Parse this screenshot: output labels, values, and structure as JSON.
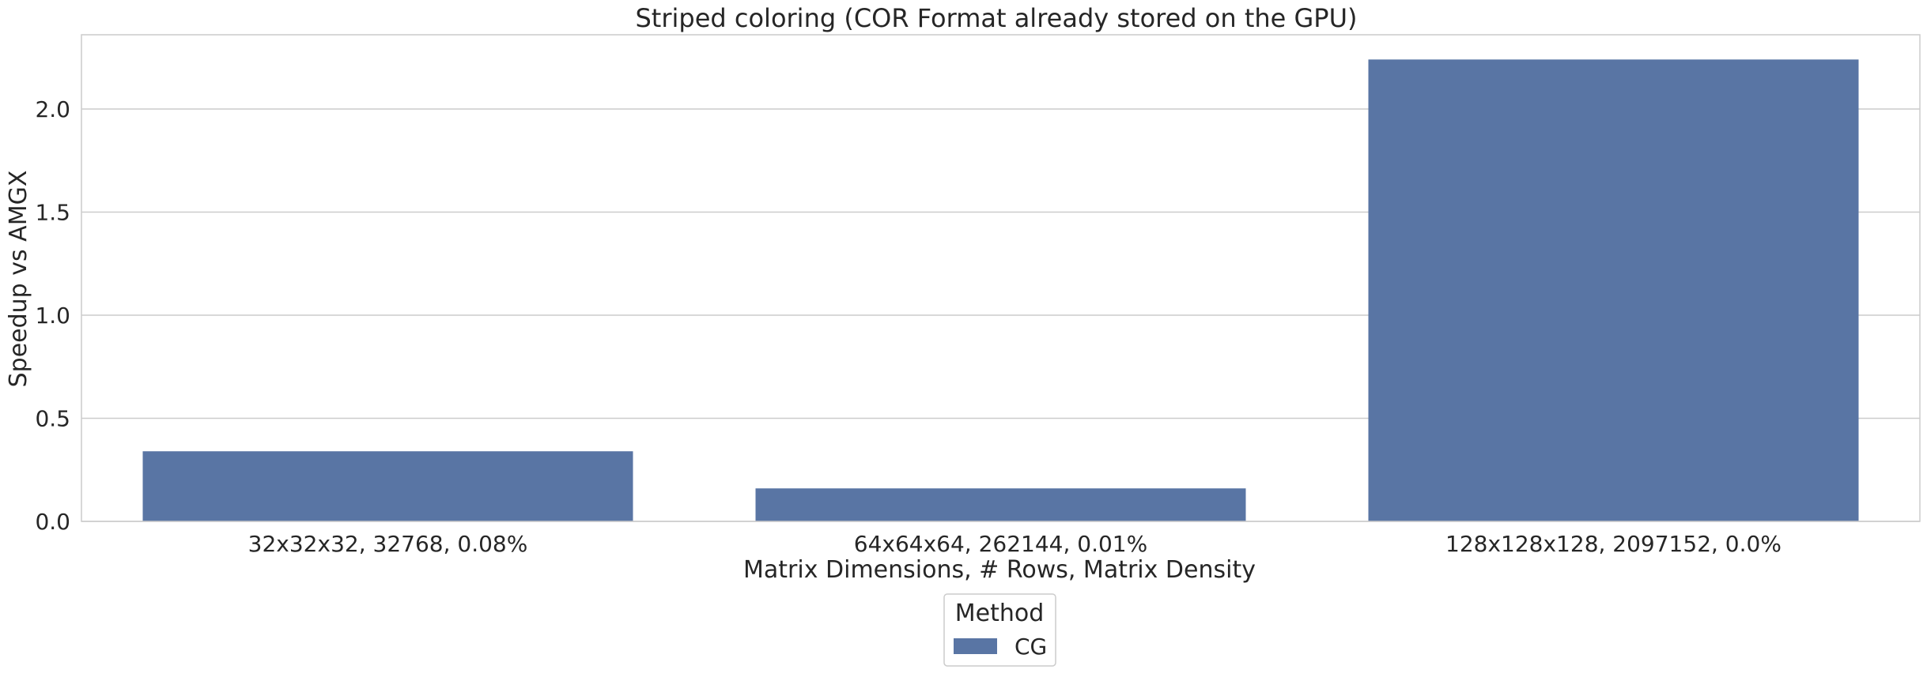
{
  "chart_data": {
    "type": "bar",
    "title": "Striped coloring (COR Format already stored on the GPU)",
    "xlabel": "Matrix Dimensions, # Rows, Matrix Density",
    "ylabel": "Speedup vs AMGX",
    "categories": [
      "32x32x32, 32768, 0.08%",
      "64x64x64, 262144, 0.01%",
      "128x128x128, 2097152, 0.0%"
    ],
    "series": [
      {
        "name": "CG",
        "color": "#5975a4",
        "values": [
          0.34,
          0.16,
          2.24
        ]
      }
    ],
    "ylim": [
      0,
      2.36
    ],
    "yticks": [
      0.0,
      0.5,
      1.0,
      1.5,
      2.0
    ],
    "ytick_labels": [
      "0.0",
      "0.5",
      "1.0",
      "1.5",
      "2.0"
    ],
    "grid": "horizontal",
    "legend": {
      "title": "Method",
      "position": "bottom-center"
    },
    "colors": {
      "axis": "#cccccc",
      "grid": "#cccccc",
      "text": "#262626"
    }
  }
}
